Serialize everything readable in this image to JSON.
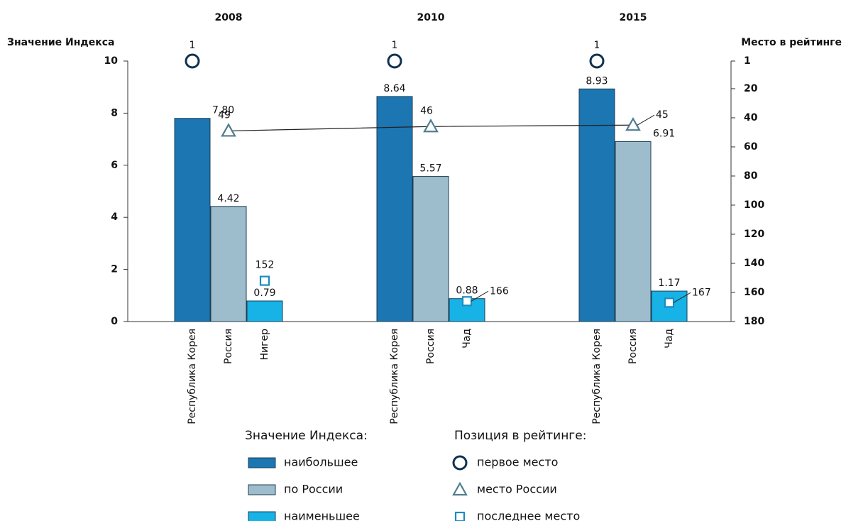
{
  "chart_data": {
    "type": "bar",
    "groups": [
      "2008",
      "2010",
      "2015"
    ],
    "categories": [
      [
        "Республика Корея",
        "Россия",
        "Нигер"
      ],
      [
        "Республика Корея",
        "Россия",
        "Чад"
      ],
      [
        "Республика Корея",
        "Россия",
        "Чад"
      ]
    ],
    "ylabel": "Значение Индекса",
    "y2label": "Место в рейтинге",
    "ylim": [
      0,
      10
    ],
    "yticks": [
      0,
      2,
      4,
      6,
      8,
      10
    ],
    "y2lim": [
      1,
      180
    ],
    "y2ticks": [
      1,
      20,
      40,
      60,
      80,
      100,
      120,
      140,
      160,
      180
    ],
    "y2_inverted": true,
    "bar_legend_title": "Значение Индекса:",
    "rank_legend_title": "Позиция в рейтинге:",
    "series": [
      {
        "name": "наибольшее",
        "color": "#1b76b2",
        "values": [
          7.8,
          8.64,
          8.93
        ],
        "value_labels": [
          "7.80",
          "8.64",
          "8.93"
        ]
      },
      {
        "name": "по России",
        "color": "#9dbccc",
        "values": [
          4.42,
          5.57,
          6.91
        ],
        "value_labels": [
          "4.42",
          "5.57",
          "6.91"
        ]
      },
      {
        "name": "наименьшее",
        "color": "#17b2e6",
        "values": [
          0.79,
          0.88,
          1.17
        ],
        "value_labels": [
          "0.79",
          "0.88",
          "1.17"
        ]
      },
      {
        "name": "первое место",
        "axis": "y2",
        "marker": "circle",
        "color": "#10324f",
        "values": [
          1,
          1,
          1
        ]
      },
      {
        "name": "место России",
        "axis": "y2",
        "marker": "triangle",
        "line": true,
        "color": "#4f7d8f",
        "values": [
          49,
          46,
          45
        ]
      },
      {
        "name": "последнее место",
        "axis": "y2",
        "marker": "square",
        "color": "#1a8dc0",
        "values": [
          152,
          166,
          167
        ]
      }
    ]
  }
}
